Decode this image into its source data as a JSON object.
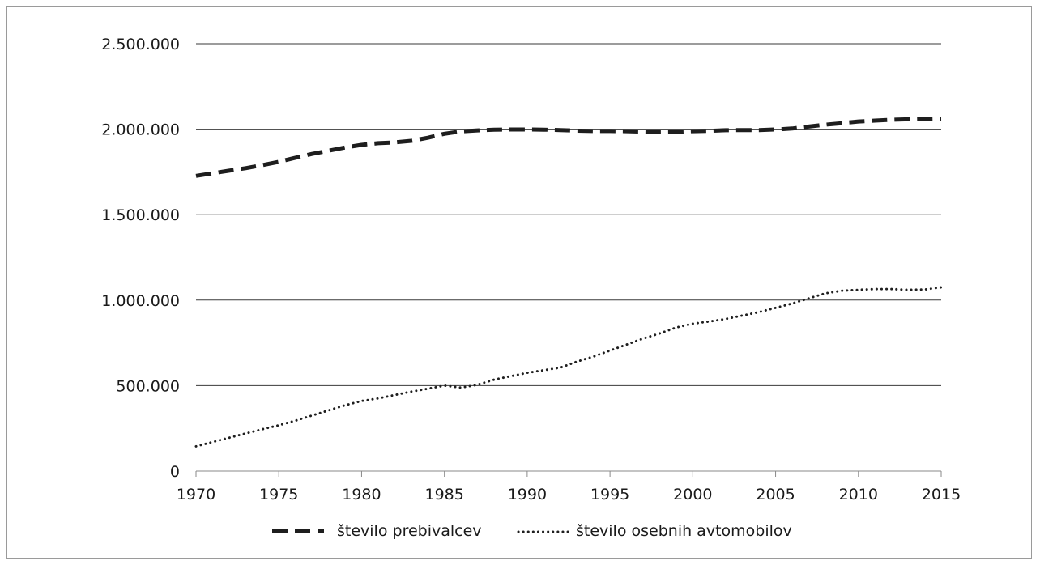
{
  "chart_data": {
    "type": "line",
    "title": "",
    "xlabel": "",
    "ylabel": "",
    "x": [
      1970,
      1971,
      1972,
      1973,
      1974,
      1975,
      1976,
      1977,
      1978,
      1979,
      1980,
      1981,
      1982,
      1983,
      1984,
      1985,
      1986,
      1987,
      1988,
      1989,
      1990,
      1991,
      1992,
      1993,
      1994,
      1995,
      1996,
      1997,
      1998,
      1999,
      2000,
      2001,
      2002,
      2003,
      2004,
      2005,
      2006,
      2007,
      2008,
      2009,
      2010,
      2011,
      2012,
      2013,
      2014,
      2015
    ],
    "xlim": [
      1970,
      2015
    ],
    "ylim": [
      0,
      2500000
    ],
    "x_ticks": [
      1970,
      1975,
      1980,
      1985,
      1990,
      1995,
      2000,
      2005,
      2010,
      2015
    ],
    "x_tick_labels": [
      "1970",
      "1975",
      "1980",
      "1985",
      "1990",
      "1995",
      "2000",
      "2005",
      "2010",
      "2015"
    ],
    "y_ticks": [
      0,
      500000,
      1000000,
      1500000,
      2000000,
      2500000
    ],
    "y_tick_labels": [
      "0",
      "500.000",
      "1.000.000",
      "1.500.000",
      "2.000.000",
      "2.500.000"
    ],
    "grid": "horizontal",
    "legend_position": "bottom-center",
    "series": [
      {
        "name": "število prebivalcev",
        "style": "dashed",
        "color": "#1e1e1e",
        "values": [
          1727000,
          1742000,
          1757000,
          1772000,
          1790000,
          1809000,
          1833000,
          1855000,
          1874000,
          1893000,
          1908000,
          1918000,
          1923000,
          1932000,
          1950000,
          1973000,
          1987000,
          1993000,
          1997000,
          1998000,
          1998000,
          1997000,
          1995000,
          1991000,
          1989000,
          1989000,
          1988000,
          1986000,
          1984000,
          1985000,
          1988000,
          1990000,
          1994000,
          1995000,
          1995000,
          1998000,
          2004000,
          2015000,
          2026000,
          2035000,
          2045000,
          2050000,
          2055000,
          2058000,
          2060000,
          2062000
        ]
      },
      {
        "name": "število osebnih avtomobilov",
        "style": "dotted",
        "color": "#1e1e1e",
        "values": [
          145000,
          170000,
          195000,
          220000,
          245000,
          268000,
          295000,
          325000,
          355000,
          385000,
          410000,
          425000,
          445000,
          465000,
          482000,
          500000,
          488000,
          505000,
          535000,
          555000,
          575000,
          590000,
          605000,
          640000,
          670000,
          705000,
          740000,
          775000,
          805000,
          840000,
          862000,
          875000,
          890000,
          910000,
          930000,
          955000,
          980000,
          1010000,
          1040000,
          1055000,
          1060000,
          1065000,
          1065000,
          1060000,
          1062000,
          1075000
        ]
      }
    ]
  }
}
